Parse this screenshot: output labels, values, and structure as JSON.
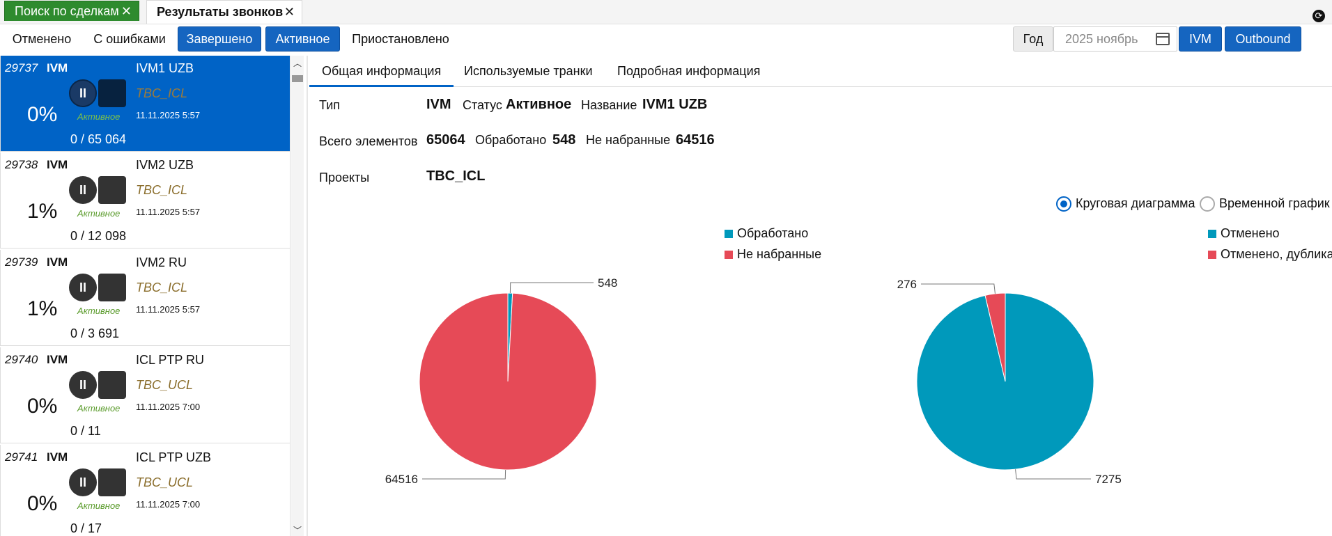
{
  "tabs": [
    {
      "label": "Поиск по сделкам"
    },
    {
      "label": "Результаты звонков"
    }
  ],
  "filters": {
    "cancelled": "Отменено",
    "errors": "С ошибками",
    "completed": "Завершено",
    "active": "Активное",
    "paused": "Приостановлено",
    "year": "Год",
    "month_placeholder": "2025 ноябрь",
    "ivm": "IVM",
    "outbound": "Outbound"
  },
  "campaigns": [
    {
      "id": "29737",
      "type": "IVM",
      "name": "IVM1 UZB",
      "project": "TBC_ICL",
      "percent": "0%",
      "status": "Активное",
      "date": "11.11.2025 5:57",
      "count": "0 / 65 064"
    },
    {
      "id": "29738",
      "type": "IVM",
      "name": "IVM2 UZB",
      "project": "TBC_ICL",
      "percent": "1%",
      "status": "Активное",
      "date": "11.11.2025 5:57",
      "count": "0 / 12 098"
    },
    {
      "id": "29739",
      "type": "IVM",
      "name": "IVM2 RU",
      "project": "TBC_ICL",
      "percent": "1%",
      "status": "Активное",
      "date": "11.11.2025 5:57",
      "count": "0 / 3 691"
    },
    {
      "id": "29740",
      "type": "IVM",
      "name": "ICL PTP RU",
      "project": "TBC_UCL",
      "percent": "0%",
      "status": "Активное",
      "date": "11.11.2025 7:00",
      "count": "0 / 11"
    },
    {
      "id": "29741",
      "type": "IVM",
      "name": "ICL PTP UZB",
      "project": "TBC_UCL",
      "percent": "0%",
      "status": "Активное",
      "date": "11.11.2025 7:00",
      "count": "0 / 17"
    }
  ],
  "detail_tabs": [
    "Общая информация",
    "Используемые транки",
    "Подробная информация"
  ],
  "details": {
    "type_label": "Тип",
    "type_value": "IVM",
    "status_label": "Статус",
    "status_value": "Активное",
    "name_label": "Название",
    "name_value": "IVM1 UZB",
    "total_label": "Всего элементов",
    "total_value": "65064",
    "processed_label": "Обработано",
    "processed_value": "548",
    "undialed_label": "Не набранные",
    "undialed_value": "64516",
    "projects_label": "Проекты",
    "projects_value": "TBC_ICL"
  },
  "view_mode": {
    "pie_label": "Круговая диаграмма",
    "time_label": "Временной график",
    "selected": "pie"
  },
  "colors": {
    "accent": "#0063c6",
    "teal": "#0099bb",
    "red": "#e64a57",
    "green": "#2e8b2e"
  },
  "chart_data": [
    {
      "type": "pie",
      "series": [
        {
          "name": "Обработано",
          "value": 548,
          "color": "#0099bb"
        },
        {
          "name": "Не набранные",
          "value": 64516,
          "color": "#e64a57"
        }
      ],
      "legend": "top"
    },
    {
      "type": "pie",
      "series": [
        {
          "name": "Отменено",
          "value": 7275,
          "color": "#0099bb"
        },
        {
          "name": "Отменено, дубликат",
          "value": 276,
          "color": "#e64a57"
        }
      ],
      "legend": "top"
    }
  ]
}
